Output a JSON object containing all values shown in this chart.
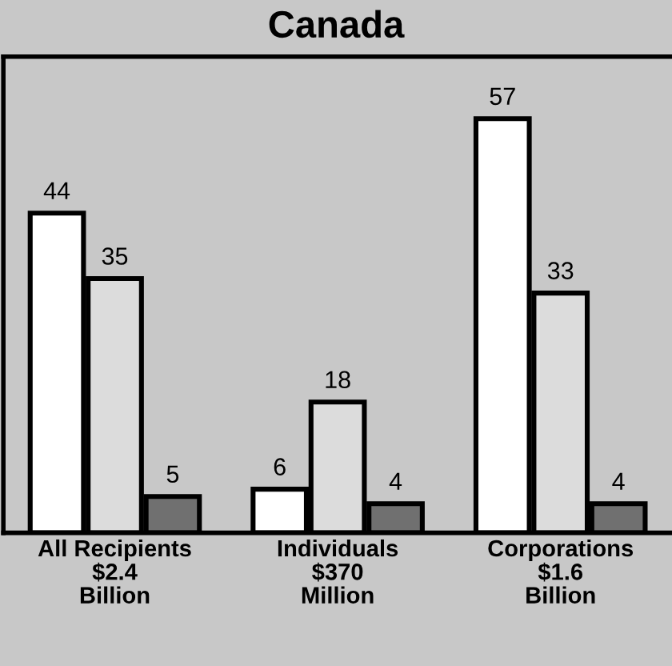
{
  "chart_data": {
    "type": "bar",
    "title": "Canada",
    "categories": [
      "All Recipients\n$2.4\nBillion",
      "Individuals\n$370\nMillion",
      "Corporations\n$1.6\nBillion"
    ],
    "series": [
      {
        "color": "#ffffff",
        "values": [
          44,
          6,
          57
        ]
      },
      {
        "color": "#dcdcdc",
        "values": [
          35,
          18,
          33
        ]
      },
      {
        "color": "#707070",
        "values": [
          5,
          4,
          4
        ]
      }
    ],
    "data_labels": true,
    "grid": false,
    "legend": false
  }
}
